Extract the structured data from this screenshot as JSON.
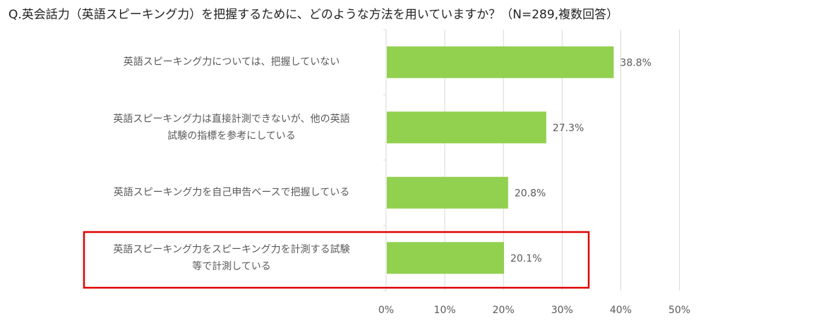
{
  "chart_data": {
    "type": "bar",
    "orientation": "horizontal",
    "title": "Q.英会話力（英語スピーキング力）を把握するために、どのような方法を用いていますか？（N=289,複数回答）",
    "categories": [
      [
        "英語スピーキング力については、把握していない"
      ],
      [
        "英語スピーキング力は直接計測できないが、他の英語",
        "試験の指標を参考にしている"
      ],
      [
        "英語スピーキング力を自己申告ベースで把握している"
      ],
      [
        "英語スピーキング力をスピーキング力を計測する試験",
        "等で計測している"
      ]
    ],
    "values": [
      38.8,
      27.3,
      20.8,
      20.1
    ],
    "value_labels": [
      "38.8%",
      "27.3%",
      "20.8%",
      "20.1%"
    ],
    "xlim": [
      0,
      50
    ],
    "ticks": [
      0,
      10,
      20,
      30,
      40,
      50
    ],
    "tick_labels": [
      "0%",
      "10%",
      "20%",
      "30%",
      "40%",
      "50%"
    ],
    "grid": true,
    "bar_color": "#92d050",
    "grid_color": "#d9d9d9",
    "highlight_index": 3,
    "highlight_color": "#e00000"
  }
}
